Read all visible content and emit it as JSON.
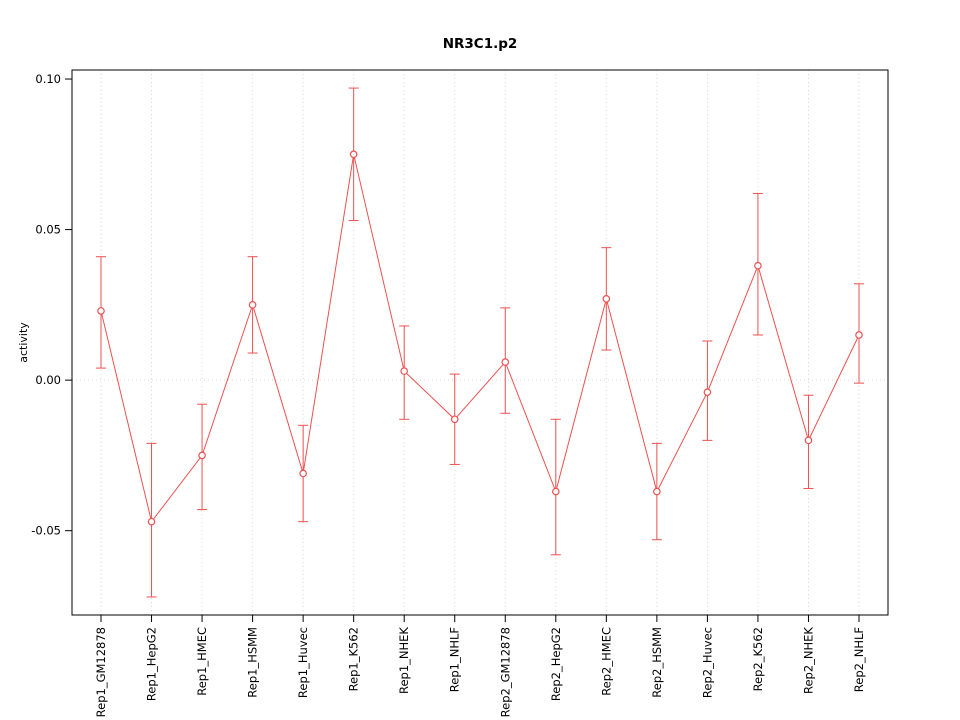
{
  "chart_data": {
    "type": "line",
    "title": "NR3C1.p2",
    "xlabel": "",
    "ylabel": "activity",
    "categories": [
      "Rep1_GM12878",
      "Rep1_HepG2",
      "Rep1_HMEC",
      "Rep1_HSMM",
      "Rep1_Huvec",
      "Rep1_K562",
      "Rep1_NHEK",
      "Rep1_NHLF",
      "Rep2_GM12878",
      "Rep2_HepG2",
      "Rep2_HMEC",
      "Rep2_HSMM",
      "Rep2_Huvec",
      "Rep2_K562",
      "Rep2_NHEK",
      "Rep2_NHLF"
    ],
    "values": [
      0.023,
      -0.047,
      -0.025,
      0.025,
      -0.031,
      0.075,
      0.003,
      -0.013,
      0.006,
      -0.037,
      0.027,
      -0.037,
      -0.004,
      0.038,
      -0.02,
      0.015
    ],
    "error_low": [
      0.004,
      -0.072,
      -0.043,
      0.009,
      -0.047,
      0.053,
      -0.013,
      -0.028,
      -0.011,
      -0.058,
      0.01,
      -0.053,
      -0.02,
      0.015,
      -0.036,
      -0.001
    ],
    "error_high": [
      0.041,
      -0.021,
      -0.008,
      0.041,
      -0.015,
      0.097,
      0.018,
      0.002,
      0.024,
      -0.013,
      0.044,
      -0.021,
      0.013,
      0.062,
      -0.005,
      0.032
    ],
    "ylim": [
      -0.078,
      0.103
    ],
    "yticks": [
      -0.05,
      0,
      0.05,
      0.1
    ],
    "ytick_labels": [
      "-0.05",
      "0.00",
      "0.05",
      "0.10"
    ],
    "series_color": "#ee5050",
    "grid_color": "#d8d8d8",
    "grid": "on",
    "zero_line": "on",
    "legend": "none"
  }
}
